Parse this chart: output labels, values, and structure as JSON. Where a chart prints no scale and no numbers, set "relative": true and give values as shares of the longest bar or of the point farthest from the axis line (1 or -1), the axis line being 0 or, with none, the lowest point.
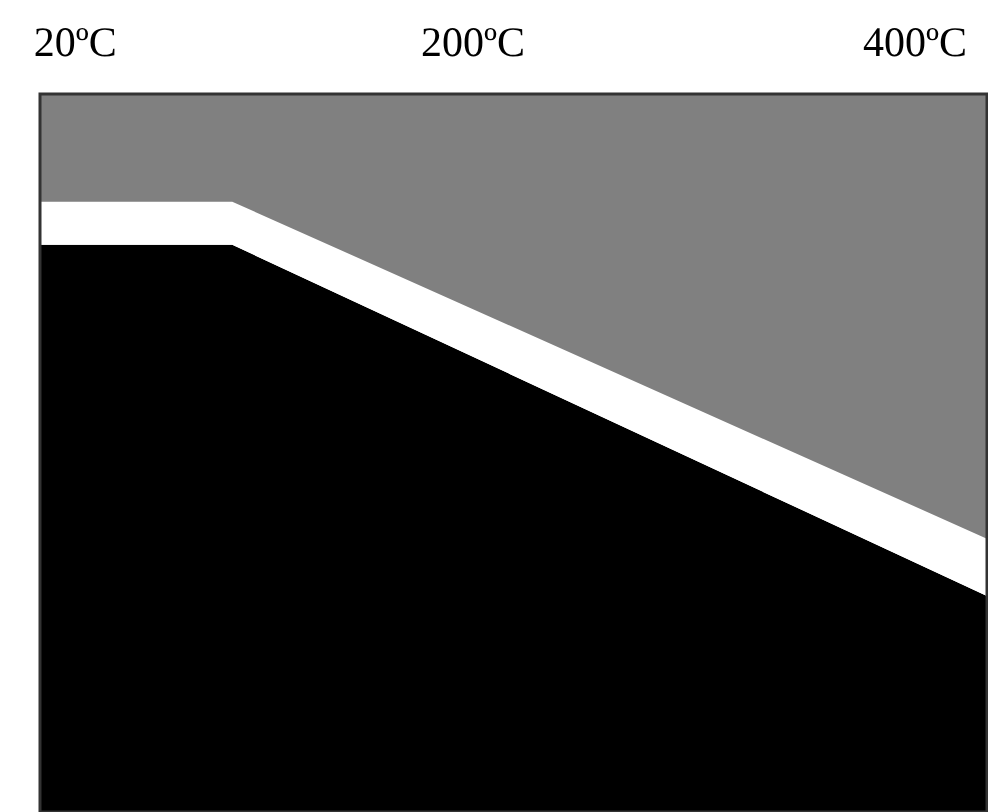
{
  "chart_data": {
    "type": "area",
    "stacked": true,
    "relative": true,
    "x": [
      4,
      91,
      433
    ],
    "xlim": [
      4,
      433
    ],
    "xticks": [
      {
        "value": 20,
        "label": "20ºC"
      },
      {
        "value": 200,
        "label": "200ºC"
      },
      {
        "value": 400,
        "label": "400ºC"
      }
    ],
    "tick_labels": "x",
    "grid": false,
    "series": [
      {
        "color": "#000000",
        "values": [
          0.79,
          0.79,
          0.3
        ]
      },
      {
        "color": "#ffffff",
        "values": [
          0.06,
          0.06,
          0.08
        ]
      },
      {
        "color": "#808080",
        "values": [
          0.15,
          0.15,
          0.62
        ]
      }
    ]
  }
}
